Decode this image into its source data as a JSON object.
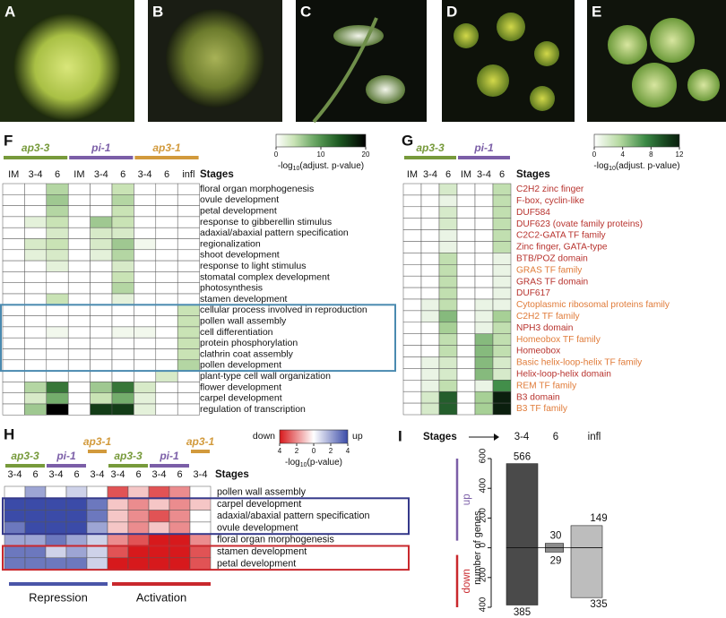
{
  "photos": [
    "A",
    "B",
    "C",
    "D",
    "E"
  ],
  "F": {
    "label": "F",
    "genotypes": [
      {
        "name": "ap3-3",
        "color": "#779a3b"
      },
      {
        "name": "pi-1",
        "color": "#7b5ea7"
      },
      {
        "name": "ap3-1",
        "color": "#d29a3c"
      }
    ],
    "columns": [
      "IM",
      "3-4",
      "6",
      "IM",
      "3-4",
      "6",
      "3-4",
      "6",
      "infl"
    ],
    "stages_label": "Stages",
    "rows": [
      "floral organ morphogenesis",
      "ovule development",
      "petal development",
      "response to gibberellin stimulus",
      "adaxial/abaxial pattern specification",
      "regionalization",
      "shoot development",
      "response to light stimulus",
      "stomatal complex development",
      "photosynthesis",
      "stamen development",
      "cellular process involved in reproduction",
      "pollen wall assembly",
      "cell differentiation",
      "protein phosphorylation",
      "clathrin coat assembly",
      "pollen development",
      "plant-type cell wall organization",
      "flower development",
      "carpel development",
      "regulation of transcription"
    ],
    "values": [
      [
        0,
        0,
        5,
        0,
        0,
        4,
        0,
        0,
        0
      ],
      [
        0,
        0,
        6,
        0,
        0,
        5,
        0,
        0,
        0
      ],
      [
        0,
        0,
        5,
        0,
        0,
        4,
        0,
        0,
        0
      ],
      [
        0,
        2,
        4,
        0,
        6,
        4,
        0,
        0,
        0
      ],
      [
        0,
        0,
        3,
        0,
        3,
        3,
        0,
        0,
        0
      ],
      [
        0,
        3,
        4,
        0,
        3,
        6,
        1,
        0,
        0
      ],
      [
        0,
        2,
        3,
        0,
        2,
        5,
        0,
        0,
        0
      ],
      [
        0,
        0,
        2,
        0,
        0,
        3,
        0,
        0,
        0
      ],
      [
        0,
        0,
        0,
        0,
        0,
        4,
        0,
        0,
        0
      ],
      [
        0,
        0,
        0,
        0,
        0,
        5,
        0,
        0,
        0
      ],
      [
        0,
        0,
        4,
        0,
        0,
        2,
        0,
        0,
        0
      ],
      [
        0,
        0,
        0,
        0,
        0,
        0,
        0,
        0,
        4
      ],
      [
        0,
        0,
        0,
        0,
        0,
        0,
        0,
        0,
        4
      ],
      [
        0,
        0,
        1,
        0,
        0,
        1,
        1,
        0,
        4
      ],
      [
        0,
        0,
        0,
        0,
        0,
        0,
        0,
        0,
        4
      ],
      [
        0,
        0,
        0,
        0,
        0,
        0,
        0,
        0,
        4
      ],
      [
        0,
        0,
        0,
        0,
        0,
        0,
        0,
        0,
        5
      ],
      [
        0,
        0,
        0,
        0,
        0,
        0,
        0,
        3,
        0
      ],
      [
        0,
        5,
        12,
        0,
        6,
        12,
        3,
        0,
        0
      ],
      [
        0,
        3,
        8,
        0,
        4,
        8,
        2,
        0,
        0
      ],
      [
        0,
        6,
        20,
        0,
        16,
        16,
        2,
        0,
        0
      ]
    ],
    "scale": {
      "label_parts": [
        "-log",
        "10",
        "(adjust. p-value)"
      ],
      "lim": [
        0,
        20
      ],
      "ticks": [
        0,
        10,
        20
      ]
    }
  },
  "G": {
    "label": "G",
    "genotypes": [
      {
        "name": "ap3-3",
        "color": "#779a3b"
      },
      {
        "name": "pi-1",
        "color": "#7b5ea7"
      }
    ],
    "columns": [
      "IM",
      "3-4",
      "6",
      "IM",
      "3-4",
      "6"
    ],
    "stages_label": "Stages",
    "rows": [
      {
        "name": "C2H2 zinc finger",
        "color": "#b8332e"
      },
      {
        "name": "F-box, cyclin-like",
        "color": "#b8332e"
      },
      {
        "name": "DUF584",
        "color": "#b8332e"
      },
      {
        "name": "DUF623 (ovate family proteins)",
        "color": "#b8332e"
      },
      {
        "name": "C2C2-GATA TF family",
        "color": "#b8332e"
      },
      {
        "name": "Zinc finger, GATA-type",
        "color": "#b8332e"
      },
      {
        "name": "BTB/POZ domain",
        "color": "#b8332e"
      },
      {
        "name": "GRAS TF family",
        "color": "#e07b39"
      },
      {
        "name": "GRAS TF domain",
        "color": "#b8332e"
      },
      {
        "name": "DUF617",
        "color": "#b8332e"
      },
      {
        "name": "Cytoplasmic ribosomal proteins family",
        "color": "#e07b39"
      },
      {
        "name": "C2H2 TF family",
        "color": "#e07b39"
      },
      {
        "name": "NPH3 domain",
        "color": "#b8332e"
      },
      {
        "name": "Homeobox TF family",
        "color": "#e07b39"
      },
      {
        "name": "Homeobox",
        "color": "#b8332e"
      },
      {
        "name": "Basic helix-loop-helix TF family",
        "color": "#e07b39"
      },
      {
        "name": "Helix-loop-helix domain",
        "color": "#b8332e"
      },
      {
        "name": "REM TF family",
        "color": "#e07b39"
      },
      {
        "name": "B3 domain",
        "color": "#b8332e"
      },
      {
        "name": "B3 TF family",
        "color": "#e07b39"
      }
    ],
    "values": [
      [
        0,
        0,
        2,
        0,
        0,
        3
      ],
      [
        0,
        0,
        1,
        0,
        0,
        3
      ],
      [
        0,
        0,
        2,
        0,
        0,
        3
      ],
      [
        0,
        0,
        2,
        0,
        0,
        3
      ],
      [
        0,
        0,
        1,
        0,
        0,
        3
      ],
      [
        0,
        0,
        1,
        0,
        0,
        3
      ],
      [
        0,
        0,
        3,
        0,
        0,
        1
      ],
      [
        0,
        0,
        3,
        0,
        0,
        1
      ],
      [
        0,
        0,
        3,
        0,
        0,
        1
      ],
      [
        0,
        0,
        3,
        0,
        0,
        1
      ],
      [
        0,
        1,
        3,
        0,
        1,
        1
      ],
      [
        0,
        1,
        5,
        0,
        1,
        4
      ],
      [
        0,
        0,
        4,
        0,
        1,
        3
      ],
      [
        0,
        0,
        3,
        0,
        5,
        3
      ],
      [
        0,
        0,
        3,
        0,
        5,
        3
      ],
      [
        0,
        1,
        2,
        0,
        5,
        2
      ],
      [
        0,
        1,
        2,
        0,
        5,
        2
      ],
      [
        0,
        1,
        3,
        0,
        1,
        7
      ],
      [
        0,
        2,
        9,
        0,
        4,
        12
      ],
      [
        0,
        2,
        9,
        0,
        4,
        12
      ]
    ],
    "scale": {
      "label_parts": [
        "-log",
        "10",
        "(adjust. p-value)"
      ],
      "lim": [
        0,
        12
      ],
      "ticks": [
        0,
        4,
        8,
        12
      ]
    }
  },
  "H": {
    "label": "H",
    "genotypes": [
      {
        "name": "ap3-3",
        "color": "#779a3b"
      },
      {
        "name": "pi-1",
        "color": "#7b5ea7"
      },
      {
        "name": "ap3-1",
        "color": "#d29a3c"
      },
      {
        "name": "ap3-3",
        "color": "#779a3b"
      },
      {
        "name": "pi-1",
        "color": "#7b5ea7"
      },
      {
        "name": "ap3-1",
        "color": "#d29a3c"
      }
    ],
    "columns": [
      "3-4",
      "6",
      "3-4",
      "6",
      "3-4",
      "3-4",
      "6",
      "3-4",
      "6",
      "3-4"
    ],
    "stages_label": "Stages",
    "rows": [
      "pollen wall assembly",
      "carpel development",
      "adaxial/abaxial pattern specification",
      "ovule development",
      "floral organ morphogenesis",
      "stamen development",
      "petal development"
    ],
    "values": [
      [
        0,
        2,
        0,
        1,
        0,
        -3,
        -1,
        -3,
        -2,
        0
      ],
      [
        4,
        4,
        4,
        4,
        3,
        -1,
        -2,
        -1,
        -2,
        -1
      ],
      [
        4,
        4,
        4,
        4,
        3,
        -1,
        -2,
        -3,
        -2,
        0
      ],
      [
        3,
        4,
        4,
        4,
        2,
        -1,
        -2,
        -1,
        -2,
        0
      ],
      [
        2,
        2,
        3,
        2,
        1,
        -2,
        -3,
        -4,
        -4,
        -2
      ],
      [
        3,
        3,
        1,
        2,
        1,
        -3,
        -4,
        -4,
        -4,
        -3
      ],
      [
        3,
        3,
        3,
        3,
        1,
        -4,
        -4,
        -4,
        -4,
        -3
      ]
    ],
    "scale": {
      "down": "down",
      "up": "up",
      "label_parts": [
        "-log",
        "10",
        "(p-value)"
      ],
      "lim": [
        -4,
        4
      ],
      "ticks": [
        {
          "value": -4,
          "label": "4"
        },
        {
          "value": -2,
          "label": "2"
        },
        0,
        {
          "value": 2,
          "label": "2"
        },
        {
          "value": 4,
          "label": "4"
        }
      ]
    },
    "groups": [
      {
        "name": "Repression",
        "color": "#4a55a8"
      },
      {
        "name": "Activation",
        "color": "#c9282d"
      }
    ]
  },
  "I": {
    "label": "I",
    "type": "bar",
    "stages_label": "Stages",
    "categories": [
      "3-4",
      "6",
      "infl"
    ],
    "colors": [
      "#4a4a4a",
      "#8c8c8c",
      "#bdbdbd"
    ],
    "series": [
      {
        "name": "up",
        "color": "#7b5ea7",
        "values": [
          566,
          30,
          149
        ]
      },
      {
        "name": "down",
        "color": "#c9282d",
        "values": [
          -385,
          -29,
          -335
        ],
        "value_labels": [
          "385",
          "29",
          "335"
        ]
      }
    ],
    "ylabel": "number of genes",
    "ylim": [
      -400,
      600
    ],
    "yticks": [
      {
        "value": -400,
        "label": "400"
      },
      {
        "value": -200,
        "label": "200"
      },
      0,
      200,
      400,
      600
    ]
  }
}
